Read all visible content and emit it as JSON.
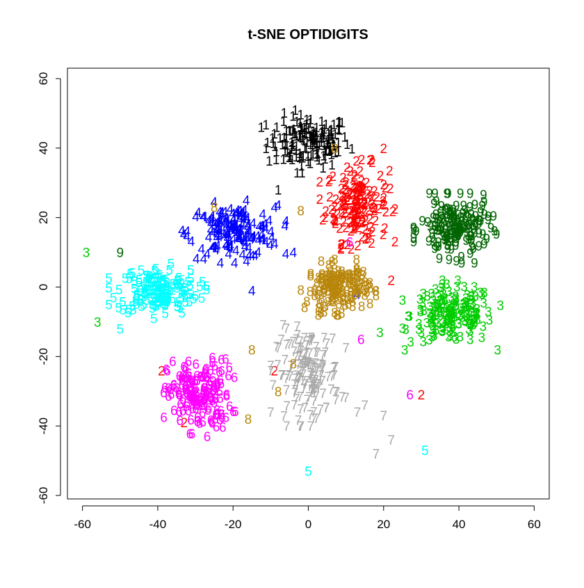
{
  "chart_data": {
    "type": "scatter",
    "title": "t-SNE OPTIDIGITS",
    "xlabel": "",
    "ylabel": "",
    "xlim": [
      -64,
      64
    ],
    "ylim": [
      -61,
      63
    ],
    "x_ticks": [
      -60,
      -40,
      -20,
      0,
      20,
      40,
      60
    ],
    "y_ticks": [
      -60,
      -40,
      -20,
      0,
      20,
      40,
      60
    ],
    "x_tick_labels": [
      "-60",
      "-40",
      "-20",
      "0",
      "20",
      "40",
      "60"
    ],
    "y_tick_labels": [
      "-60",
      "-40",
      "-20",
      "0",
      "20",
      "40",
      "60"
    ],
    "grid": false,
    "marker": "digit-label",
    "clusters": [
      {
        "digit": "1",
        "color": "#000000",
        "center": [
          0,
          42
        ],
        "spread": [
          13,
          9
        ],
        "count": 150,
        "outliers": [
          [
            -3,
            33
          ],
          [
            -8,
            28
          ]
        ]
      },
      {
        "digit": "2",
        "color": "#ff0000",
        "center": [
          13,
          24
        ],
        "spread": [
          10,
          13
        ],
        "count": 160,
        "outliers": [
          [
            -39,
            -24
          ],
          [
            -33,
            -39
          ],
          [
            20,
            40
          ],
          [
            22,
            2
          ],
          [
            30,
            -31
          ],
          [
            -9,
            -24
          ]
        ]
      },
      {
        "digit": "3",
        "color": "#00cc00",
        "center": [
          38,
          -8
        ],
        "spread": [
          13,
          10
        ],
        "count": 170,
        "outliers": [
          [
            -59,
            10
          ],
          [
            -56,
            -10
          ],
          [
            19,
            -13
          ]
        ]
      },
      {
        "digit": "4",
        "color": "#0000ff",
        "center": [
          -20,
          16
        ],
        "spread": [
          14,
          9
        ],
        "count": 150,
        "outliers": [
          [
            -15,
            -1
          ],
          [
            -9,
            23
          ],
          [
            -4,
            10
          ],
          [
            13,
            -2
          ]
        ]
      },
      {
        "digit": "5",
        "color": "#00ffff",
        "center": [
          -40,
          -1
        ],
        "spread": [
          13,
          8
        ],
        "count": 150,
        "outliers": [
          [
            -50,
            -12
          ],
          [
            31,
            -47
          ],
          [
            0,
            -53
          ]
        ]
      },
      {
        "digit": "6",
        "color": "#ff00ff",
        "center": [
          -29,
          -31
        ],
        "spread": [
          10,
          12
        ],
        "count": 160,
        "outliers": [
          [
            -21,
            -23
          ],
          [
            14,
            -15
          ],
          [
            27,
            -31
          ],
          [
            11,
            13
          ]
        ]
      },
      {
        "digit": "7",
        "color": "#aaaaaa",
        "center": [
          0,
          -25
        ],
        "spread": [
          10,
          15
        ],
        "count": 150,
        "outliers": [
          [
            15,
            -34
          ],
          [
            20,
            -37
          ],
          [
            18,
            -48
          ],
          [
            22,
            -44
          ],
          [
            13,
            -36
          ]
        ]
      },
      {
        "digit": "8",
        "color": "#b8860b",
        "center": [
          8,
          0
        ],
        "spread": [
          10,
          8
        ],
        "count": 150,
        "outliers": [
          [
            -8,
            -30
          ],
          [
            -25,
            23
          ],
          [
            -15,
            -18
          ],
          [
            -4,
            -22
          ],
          [
            7,
            40
          ],
          [
            -2,
            22
          ],
          [
            -16,
            -38
          ]
        ]
      },
      {
        "digit": "9",
        "color": "#006400",
        "center": [
          39,
          17
        ],
        "spread": [
          11,
          10
        ],
        "count": 160,
        "outliers": [
          [
            -50,
            10
          ]
        ]
      }
    ]
  }
}
